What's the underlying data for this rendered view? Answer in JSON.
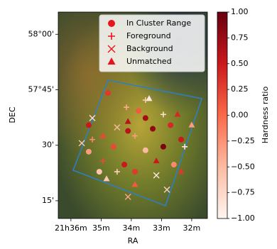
{
  "chart_data": {
    "type": "scatter",
    "xlabel": "RA",
    "ylabel": "DEC",
    "colorbar_label": "Hardness ratio",
    "xlim": [
      36.42,
      31.48
    ],
    "ylim": [
      10.2,
      66
    ],
    "xticks": [
      {
        "value": 36,
        "label": "21h36m"
      },
      {
        "value": 35,
        "label": "35m"
      },
      {
        "value": 34,
        "label": "34m"
      },
      {
        "value": 33,
        "label": "33m"
      },
      {
        "value": 32,
        "label": "32m"
      }
    ],
    "yticks": [
      {
        "value": 60,
        "label": "58°00'"
      },
      {
        "value": 45,
        "label": "57°45'"
      },
      {
        "value": 30,
        "label": "30'"
      },
      {
        "value": 15,
        "label": "15'"
      }
    ],
    "clim": [
      -1,
      1
    ],
    "cticks": [
      {
        "value": 1,
        "label": "1.00"
      },
      {
        "value": 0.75,
        "label": "0.75"
      },
      {
        "value": 0.5,
        "label": "0.50"
      },
      {
        "value": 0.25,
        "label": "0.25"
      },
      {
        "value": 0,
        "label": "0.00"
      },
      {
        "value": -0.25,
        "label": "−0.25"
      },
      {
        "value": -0.5,
        "label": "−0.50"
      },
      {
        "value": -0.75,
        "label": "−0.75"
      },
      {
        "value": -1,
        "label": "−1.00"
      }
    ],
    "colormap": [
      "#fff5f0",
      "#fcbba1",
      "#fb6a4a",
      "#cb181d",
      "#67000d"
    ],
    "legend_color": "#e8141c",
    "legend": "upper right",
    "series": [
      {
        "name": "In Cluster Range",
        "marker": "circle",
        "x": [
          34.77,
          35.41,
          33.76,
          34.11,
          33.29,
          32.7,
          34.59,
          33.53,
          35.41,
          34.23,
          32.94,
          33.88,
          32.59,
          35.06,
          33.53,
          32.35
        ],
        "y": [
          44.13,
          35.42,
          39.29,
          33.87,
          34.45,
          35.42,
          29.61,
          28.65,
          28.26,
          24.77,
          29.61,
          22.84,
          24.77,
          22.84,
          37.35,
          31.55
        ],
        "values": [
          0.3,
          0.5,
          0.1,
          0.6,
          0.8,
          0.4,
          0.2,
          -0.5,
          -0.3,
          0.5,
          0.9,
          0.3,
          -0.2,
          -0.6,
          0.7,
          0.5
        ]
      },
      {
        "name": "Foreground",
        "marker": "plus",
        "x": [
          34.16,
          33.53,
          35.29,
          32.94,
          34.47,
          32.23,
          33.88,
          34.94
        ],
        "y": [
          40.26,
          42.19,
          31.55,
          38.32,
          22.84,
          29.61,
          32.52,
          25.74
        ],
        "values": [
          -0.4,
          -0.6,
          -0.2,
          -0.8,
          -0.7,
          -0.9,
          -0.3,
          0.2
        ]
      },
      {
        "name": "Background",
        "marker": "x",
        "x": [
          35.29,
          35.64,
          34.47,
          33.17,
          34.11,
          32.82
        ],
        "y": [
          37.35,
          30.58,
          34.84,
          21.87,
          16.06,
          18.0
        ],
        "values": [
          -0.8,
          -0.6,
          -0.5,
          -0.9,
          -0.4,
          -0.7
        ]
      },
      {
        "name": "Unmatched",
        "marker": "triangle",
        "x": [
          33.41,
          32.47,
          34.11,
          34.94,
          32.0,
          33.17,
          33.88,
          34.82,
          32.35
        ],
        "y": [
          42.58,
          38.32,
          36.39,
          32.52,
          35.42,
          25.74,
          19.35,
          20.9,
          22.84
        ],
        "values": [
          -0.9,
          0.4,
          0.6,
          0.2,
          -0.3,
          0.5,
          0.1,
          -0.6,
          0.3
        ]
      }
    ]
  }
}
